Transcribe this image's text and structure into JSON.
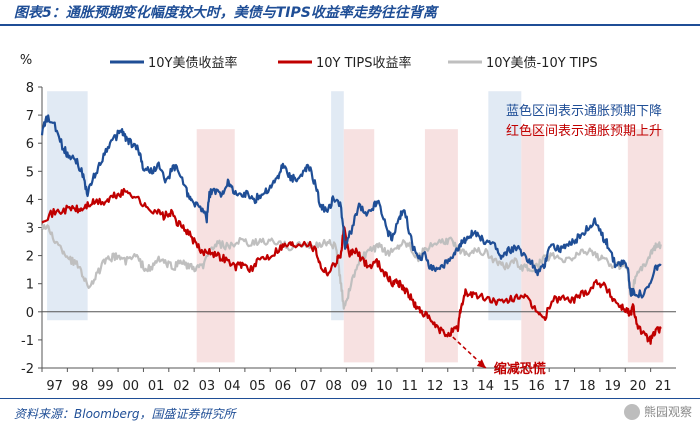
{
  "figure": {
    "title": "图表5：通胀预期变化幅度较大时，美债与TIPS收益率走势往往背离",
    "source": "资料来源：Bloomberg，国盛证券研究所",
    "watermark": "熊园观察"
  },
  "chart_data": {
    "type": "line",
    "ylabel": "%",
    "ylim": [
      -2,
      8
    ],
    "yticks": [
      -2,
      -1,
      0,
      1,
      2,
      3,
      4,
      5,
      6,
      7,
      8
    ],
    "xlim": [
      1997.0,
      2022.0
    ],
    "xtick_labels": [
      "97",
      "98",
      "99",
      "00",
      "01",
      "02",
      "03",
      "04",
      "05",
      "06",
      "07",
      "08",
      "09",
      "10",
      "11",
      "12",
      "13",
      "14",
      "15",
      "16",
      "17",
      "18",
      "19",
      "20",
      "21"
    ],
    "legend": [
      "10Y美债收益率",
      "10Y TIPS收益率",
      "10Y美债-10Y TIPS"
    ],
    "annotations": {
      "blue_note": "蓝色区间表示通胀预期下降",
      "red_note": "红色区间表示通胀预期上升",
      "arrow_label": "缩减恐慌"
    },
    "colors": {
      "nominal": "#1f4e96",
      "tips": "#c00000",
      "breakeven": "#bfbfbf",
      "blue_band": "#dce6f2",
      "red_band": "#f6dcdc",
      "annotation_blue": "#1f4e96",
      "annotation_red": "#c00000"
    },
    "shaded_regions": [
      {
        "kind": "blue",
        "x0": 1997.2,
        "x1": 1998.8
      },
      {
        "kind": "red",
        "x0": 2003.1,
        "x1": 2004.6
      },
      {
        "kind": "blue",
        "x0": 2008.4,
        "x1": 2008.9
      },
      {
        "kind": "red",
        "x0": 2008.9,
        "x1": 2010.1
      },
      {
        "kind": "red",
        "x0": 2012.1,
        "x1": 2013.4
      },
      {
        "kind": "blue",
        "x0": 2014.6,
        "x1": 2015.9
      },
      {
        "kind": "red",
        "x0": 2015.9,
        "x1": 2016.8
      },
      {
        "kind": "red",
        "x0": 2020.1,
        "x1": 2021.5
      }
    ],
    "series": [
      {
        "name": "10Y美债收益率",
        "key": "nominal",
        "x": [
          1997.0,
          1997.2,
          1997.5,
          1997.8,
          1998.0,
          1998.3,
          1998.6,
          1998.8,
          1999.0,
          1999.3,
          1999.6,
          1999.9,
          2000.1,
          2000.3,
          2000.5,
          2000.8,
          2001.0,
          2001.3,
          2001.6,
          2001.9,
          2002.2,
          2002.4,
          2002.7,
          2002.9,
          2003.2,
          2003.5,
          2003.6,
          2003.8,
          2004.1,
          2004.3,
          2004.5,
          2004.8,
          2005.1,
          2005.4,
          2005.7,
          2006.0,
          2006.3,
          2006.5,
          2006.8,
          2007.0,
          2007.3,
          2007.5,
          2007.8,
          2008.0,
          2008.3,
          2008.5,
          2008.8,
          2008.95,
          2009.2,
          2009.5,
          2009.8,
          2010.1,
          2010.3,
          2010.6,
          2010.8,
          2011.1,
          2011.3,
          2011.6,
          2011.8,
          2012.1,
          2012.3,
          2012.6,
          2012.9,
          2013.2,
          2013.4,
          2013.6,
          2013.8,
          2014.0,
          2014.3,
          2014.6,
          2014.9,
          2015.1,
          2015.4,
          2015.7,
          2016.0,
          2016.3,
          2016.5,
          2016.8,
          2017.0,
          2017.3,
          2017.5,
          2017.8,
          2018.0,
          2018.3,
          2018.6,
          2018.8,
          2019.1,
          2019.3,
          2019.6,
          2019.9,
          2020.1,
          2020.2,
          2020.4,
          2020.7,
          2021.0,
          2021.2,
          2021.4
        ],
        "y": [
          6.4,
          6.9,
          6.6,
          5.9,
          5.6,
          5.5,
          4.9,
          4.2,
          4.7,
          5.3,
          5.9,
          6.2,
          6.5,
          6.2,
          6.0,
          5.8,
          5.1,
          5.0,
          5.2,
          4.6,
          5.2,
          5.0,
          4.3,
          3.9,
          3.8,
          3.3,
          4.2,
          4.3,
          4.2,
          4.6,
          4.4,
          4.1,
          4.2,
          4.0,
          4.2,
          4.4,
          4.8,
          5.2,
          4.8,
          4.7,
          4.9,
          5.2,
          4.5,
          3.7,
          3.6,
          4.1,
          3.7,
          2.3,
          2.9,
          3.8,
          3.4,
          3.8,
          3.9,
          2.9,
          2.6,
          3.4,
          3.6,
          2.4,
          1.9,
          2.0,
          1.6,
          1.5,
          1.7,
          1.9,
          2.2,
          2.5,
          2.7,
          2.8,
          2.6,
          2.5,
          2.3,
          1.9,
          2.2,
          2.3,
          2.0,
          1.8,
          1.4,
          1.6,
          2.4,
          2.3,
          2.2,
          2.4,
          2.5,
          2.8,
          3.0,
          3.2,
          2.7,
          2.4,
          1.7,
          1.8,
          1.6,
          0.7,
          0.7,
          0.6,
          1.0,
          1.6,
          1.7
        ]
      },
      {
        "name": "10Y TIPS收益率",
        "key": "tips",
        "x": [
          1997.0,
          1997.4,
          1997.8,
          1998.2,
          1998.5,
          1998.8,
          1999.1,
          1999.5,
          1999.8,
          2000.1,
          2000.4,
          2000.8,
          2001.1,
          2001.5,
          2001.8,
          2002.1,
          2002.4,
          2002.7,
          2003.0,
          2003.3,
          2003.6,
          2003.9,
          2004.2,
          2004.6,
          2004.9,
          2005.3,
          2005.6,
          2006.0,
          2006.4,
          2006.7,
          2007.0,
          2007.4,
          2007.8,
          2008.0,
          2008.3,
          2008.6,
          2008.8,
          2008.9,
          2009.1,
          2009.3,
          2009.6,
          2009.9,
          2010.2,
          2010.5,
          2010.8,
          2011.0,
          2011.2,
          2011.4,
          2011.6,
          2011.8,
          2012.0,
          2012.3,
          2012.6,
          2012.9,
          2013.2,
          2013.4,
          2013.5,
          2013.7,
          2014.0,
          2014.4,
          2014.8,
          2015.2,
          2015.6,
          2016.0,
          2016.3,
          2016.6,
          2016.8,
          2017.1,
          2017.5,
          2017.9,
          2018.2,
          2018.6,
          2018.9,
          2019.2,
          2019.5,
          2019.8,
          2020.0,
          2020.2,
          2020.3,
          2020.5,
          2020.8,
          2021.0,
          2021.2,
          2021.4
        ],
        "y": [
          3.3,
          3.5,
          3.6,
          3.7,
          3.6,
          3.8,
          3.9,
          3.9,
          4.1,
          4.2,
          4.3,
          4.0,
          3.7,
          3.6,
          3.4,
          3.5,
          3.1,
          2.9,
          2.5,
          2.1,
          2.2,
          2.0,
          1.9,
          1.6,
          1.7,
          1.5,
          1.9,
          2.0,
          2.3,
          2.4,
          2.4,
          2.5,
          2.2,
          1.6,
          1.4,
          1.8,
          2.1,
          3.0,
          2.0,
          2.2,
          1.9,
          1.6,
          1.8,
          1.4,
          1.0,
          1.1,
          0.9,
          0.7,
          0.4,
          0.1,
          0.0,
          -0.3,
          -0.6,
          -0.8,
          -0.7,
          -0.6,
          0.1,
          0.7,
          0.6,
          0.5,
          0.4,
          0.3,
          0.5,
          0.6,
          0.2,
          0.0,
          -0.3,
          0.4,
          0.5,
          0.4,
          0.6,
          0.8,
          1.1,
          0.9,
          0.5,
          0.2,
          0.1,
          -0.1,
          0.2,
          -0.5,
          -0.9,
          -1.0,
          -0.7,
          -0.6
        ]
      },
      {
        "name": "10Y美债-10Y TIPS",
        "key": "breakeven",
        "x": [
          1997.0,
          1997.3,
          1997.6,
          1997.9,
          1998.2,
          1998.5,
          1998.8,
          1999.1,
          1999.4,
          1999.7,
          2000.0,
          2000.3,
          2000.7,
          2001.0,
          2001.3,
          2001.6,
          2001.9,
          2002.2,
          2002.5,
          2002.8,
          2003.1,
          2003.4,
          2003.7,
          2004.0,
          2004.4,
          2004.8,
          2005.2,
          2005.6,
          2006.0,
          2006.4,
          2006.8,
          2007.2,
          2007.6,
          2008.0,
          2008.3,
          2008.6,
          2008.75,
          2008.9,
          2009.1,
          2009.4,
          2009.7,
          2010.0,
          2010.3,
          2010.6,
          2010.9,
          2011.2,
          2011.5,
          2011.8,
          2012.1,
          2012.5,
          2012.9,
          2013.2,
          2013.5,
          2013.8,
          2014.1,
          2014.5,
          2014.9,
          2015.2,
          2015.6,
          2015.9,
          2016.2,
          2016.5,
          2016.8,
          2017.1,
          2017.5,
          2017.9,
          2018.2,
          2018.6,
          2018.9,
          2019.2,
          2019.6,
          2019.9,
          2020.1,
          2020.2,
          2020.4,
          2020.7,
          2021.0,
          2021.2,
          2021.4
        ],
        "y": [
          3.1,
          2.9,
          2.4,
          2.1,
          1.8,
          1.6,
          0.9,
          1.2,
          1.7,
          1.9,
          2.0,
          1.8,
          2.0,
          1.6,
          1.5,
          1.9,
          1.7,
          1.6,
          1.8,
          1.6,
          1.5,
          1.7,
          2.3,
          2.4,
          2.3,
          2.5,
          2.4,
          2.5,
          2.5,
          2.4,
          2.3,
          2.4,
          2.3,
          2.4,
          2.5,
          2.3,
          1.2,
          0.2,
          0.7,
          1.6,
          2.0,
          2.2,
          2.3,
          2.1,
          2.2,
          2.5,
          2.4,
          1.9,
          2.2,
          2.4,
          2.5,
          2.5,
          2.2,
          2.1,
          2.2,
          2.1,
          1.8,
          1.6,
          1.8,
          1.6,
          1.5,
          1.6,
          1.9,
          2.0,
          1.8,
          1.9,
          2.1,
          2.2,
          2.0,
          1.8,
          1.6,
          1.7,
          1.6,
          0.6,
          1.2,
          1.6,
          2.1,
          2.3,
          2.4
        ]
      }
    ]
  }
}
